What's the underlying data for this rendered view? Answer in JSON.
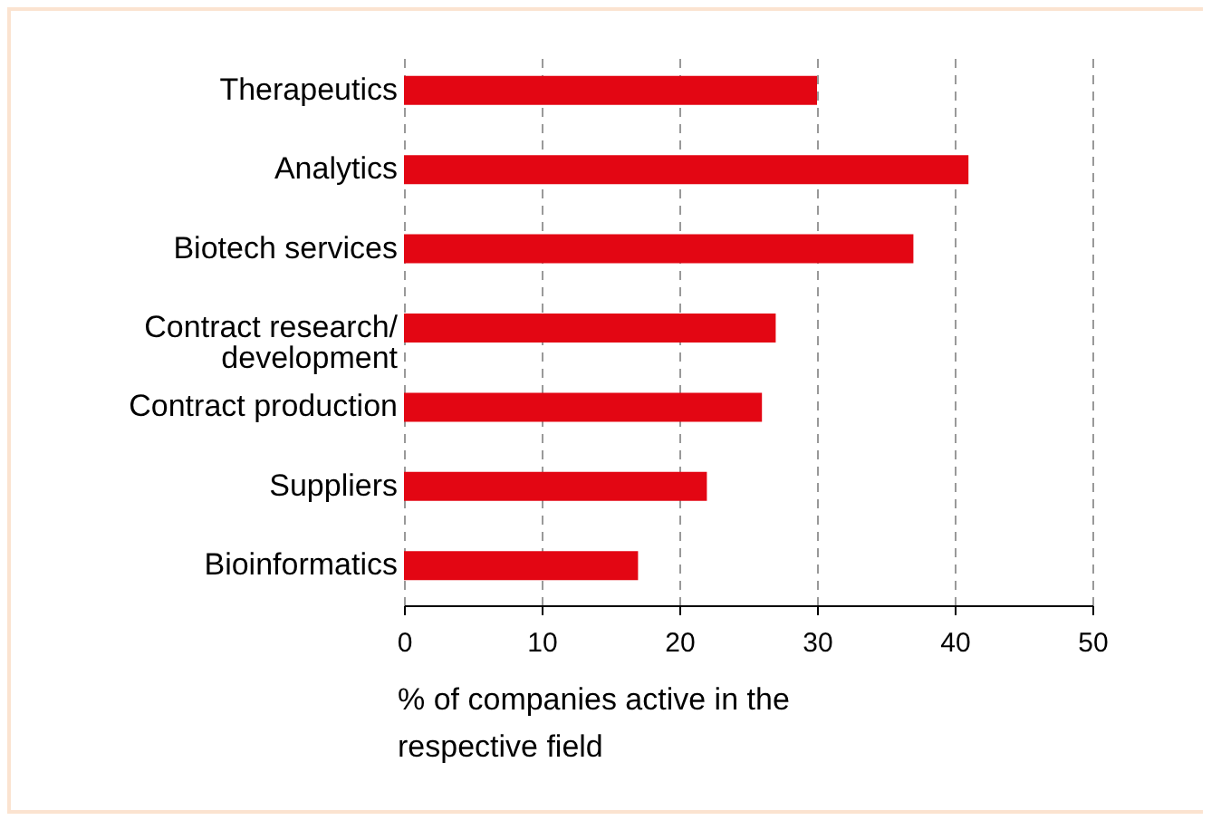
{
  "chart_data": {
    "type": "bar",
    "orientation": "horizontal",
    "xlabel": "% of companies active in the respective field",
    "categories": [
      "Therapeutics",
      null,
      "Analytics",
      "Biotech services",
      "Contract research/\ndevelopment",
      "Contract production",
      "Suppliers",
      "Bioinformatics"
    ],
    "values": [
      30,
      null,
      41,
      37,
      27,
      26,
      22,
      17
    ],
    "color": "#e30613",
    "xlim": [
      0,
      50
    ],
    "xticks": [
      0,
      10,
      20,
      30,
      40,
      50
    ],
    "grid": "x"
  }
}
